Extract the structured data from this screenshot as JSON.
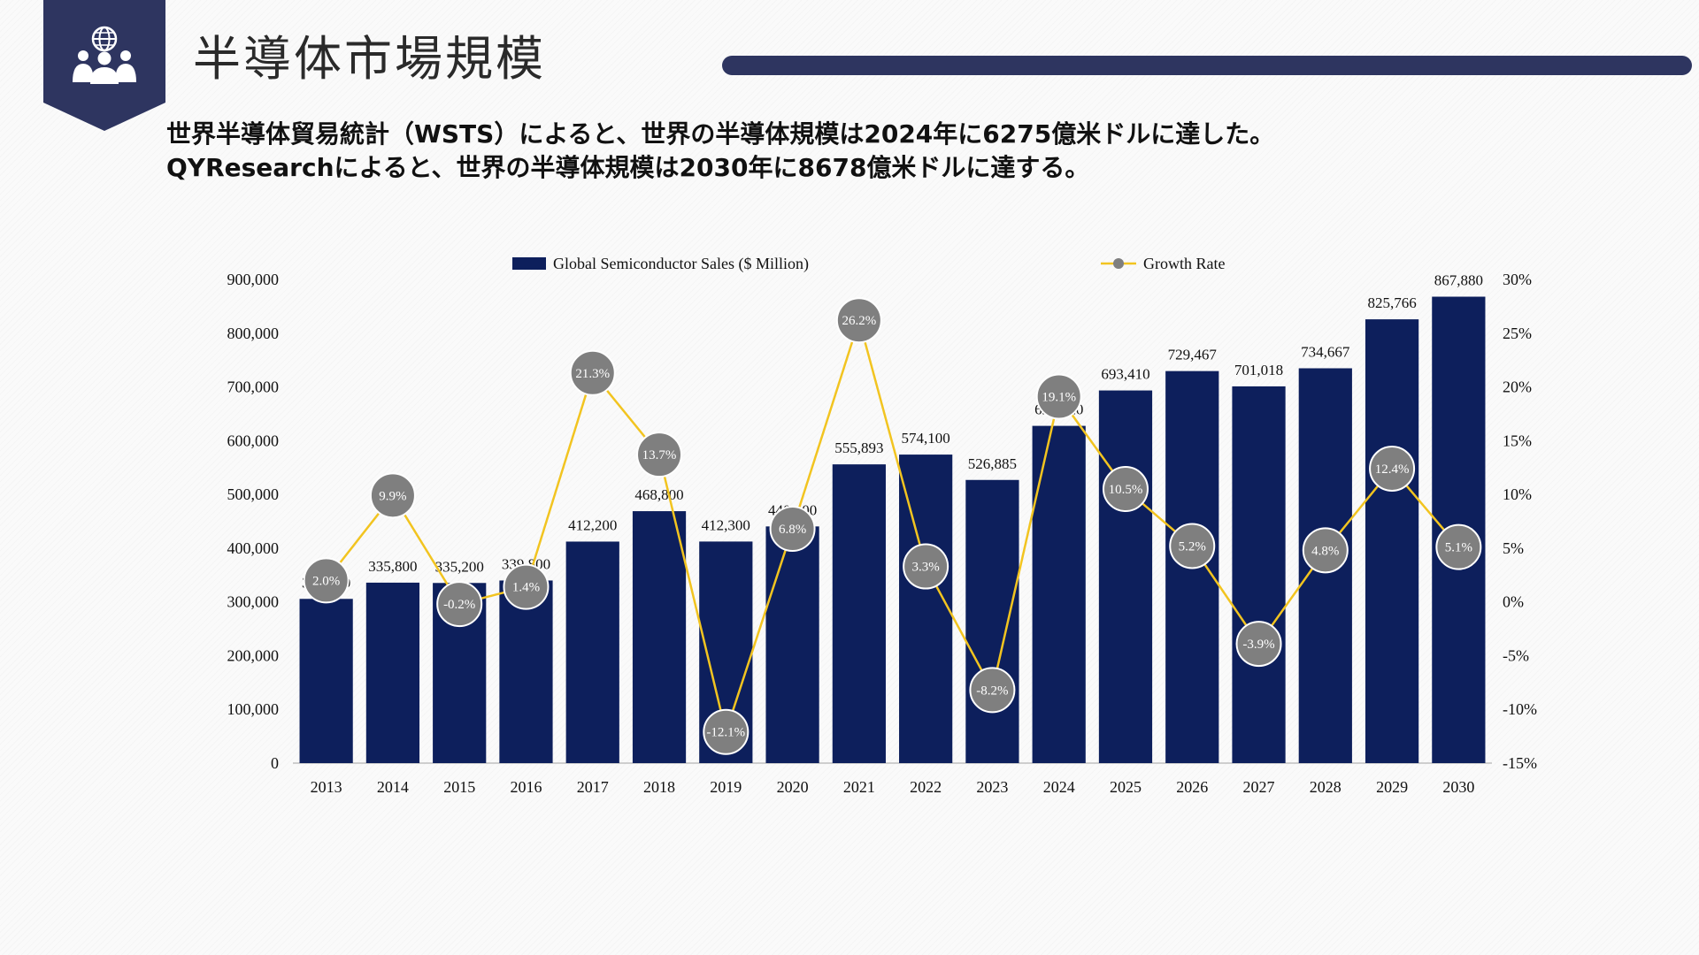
{
  "header": {
    "title": "半導体市場規模",
    "icon": "globe-people-icon",
    "accent_color": "#2e3560"
  },
  "subtitle": {
    "line1": "世界半導体貿易統計（WSTS）によると、世界の半導体規模は2024年に6275億米ドルに達した。",
    "line2": "QYResearchによると、世界の半導体規模は2030年に8678億米ドルに達する。"
  },
  "chart_data": {
    "type": "bar",
    "categories": [
      "2013",
      "2014",
      "2015",
      "2016",
      "2017",
      "2018",
      "2019",
      "2020",
      "2021",
      "2022",
      "2023",
      "2024",
      "2025",
      "2026",
      "2027",
      "2028",
      "2029",
      "2030"
    ],
    "series": [
      {
        "name": "Global Semiconductor Sales ($ Million)",
        "type": "bar",
        "axis": "left",
        "color": "#0d1f5c",
        "values": [
          305600,
          335800,
          335200,
          339800,
          412200,
          468800,
          412300,
          440400,
          555893,
          574100,
          526885,
          627520,
          693410,
          729467,
          701018,
          734667,
          825766,
          867880
        ],
        "labels": [
          "305,600",
          "335,800",
          "335,200",
          "339,800",
          "412,200",
          "468,800",
          "412,300",
          "440,400",
          "555,893",
          "574,100",
          "526,885",
          "627,520",
          "693,410",
          "729,467",
          "701,018",
          "734,667",
          "825,766",
          "867,880"
        ]
      },
      {
        "name": "Growth Rate",
        "type": "line",
        "axis": "right",
        "line_color": "#f2c420",
        "marker_color": "#7f7f7f",
        "values": [
          2.0,
          9.9,
          -0.2,
          1.4,
          21.3,
          13.7,
          -12.1,
          6.8,
          26.2,
          3.3,
          -8.2,
          19.1,
          10.5,
          5.2,
          -3.9,
          4.8,
          12.4,
          5.1
        ],
        "labels": [
          "2.0%",
          "9.9%",
          "-0.2%",
          "1.4%",
          "21.3%",
          "13.7%",
          "-12.1%",
          "6.8%",
          "26.2%",
          "3.3%",
          "-8.2%",
          "19.1%",
          "10.5%",
          "5.2%",
          "-3.9%",
          "4.8%",
          "12.4%",
          "5.1%"
        ]
      }
    ],
    "y_left": {
      "range": [
        0,
        900000
      ],
      "ticks": [
        "0",
        "100,000",
        "200,000",
        "300,000",
        "400,000",
        "500,000",
        "600,000",
        "700,000",
        "800,000",
        "900,000"
      ]
    },
    "y_right": {
      "range": [
        -15,
        30
      ],
      "ticks": [
        "-15%",
        "-10%",
        "-5%",
        "0%",
        "5%",
        "10%",
        "15%",
        "20%",
        "25%",
        "30%"
      ]
    },
    "legend": {
      "position": "top"
    },
    "grid": false
  }
}
